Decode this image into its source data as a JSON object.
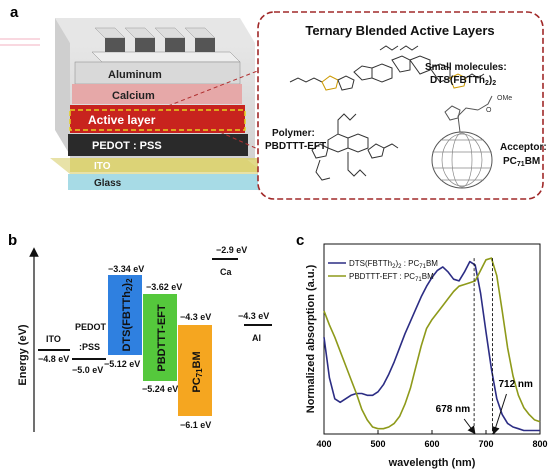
{
  "panel_a": {
    "letter": "a",
    "layers": {
      "aluminum": "Aluminum",
      "calcium": "Calcium",
      "active": "Active layer",
      "pedot": "PEDOT : PSS",
      "ito": "ITO",
      "glass": "Glass"
    },
    "inset": {
      "title": "Ternary Blended Active Layers",
      "small_molecules_label": "Small molecules:",
      "small_molecules_name": "DTS(FBTTh",
      "small_molecules_sub": "2",
      "small_molecules_close": ")",
      "small_molecules_sub2": "2",
      "polymer_label": "Polymer:",
      "polymer_name": "PBDTTT-EFT",
      "acceptor_label": "Acceptor:",
      "acceptor_name_a": "PC",
      "acceptor_sub": "71",
      "acceptor_name_b": "BM",
      "ome": "OMe",
      "o": "O"
    }
  },
  "panel_b": {
    "letter": "b",
    "y_axis_label": "Energy (eV)",
    "colors": {
      "dts": "#2f80e0",
      "pbdttt": "#55c83c",
      "pcbm": "#f5a620"
    },
    "levels": {
      "ca_value": "−2.9 eV",
      "ca_label": "Ca",
      "al_value": "−4.3 eV",
      "al_label": "Al",
      "ito_label": "ITO",
      "ito_value": "−4.8 eV",
      "pedot_label_1": "PEDOT",
      "pedot_label_2": ":PSS",
      "pedot_value": "−5.0 eV",
      "dts_lumo": "−3.34 eV",
      "dts_homo": "−5.12 eV",
      "pbdttt_lumo": "−3.62 eV",
      "pbdttt_homo": "−5.24 eV",
      "pcbm_lumo": "−4.3 eV",
      "pcbm_homo": "−6.1 eV"
    },
    "bars": {
      "dts": "DTS(FBTTh",
      "dts_sub": "2",
      "dts_close": ")",
      "dts_sub2": "2",
      "pbdttt": "PBDTTT-EFT",
      "pcbm_a": "PC",
      "pcbm_sub": "71",
      "pcbm_b": "BM"
    }
  },
  "chart_data": {
    "type": "line",
    "panel_letter": "c",
    "xlabel": "wavelength (nm)",
    "ylabel": "Normalized absorption (a.u.)",
    "xlim": [
      400,
      800
    ],
    "ylim": [
      0,
      1.08
    ],
    "xticks": [
      "400",
      "500",
      "600",
      "700",
      "800"
    ],
    "series": [
      {
        "name": "DTS(FBTTh2)2 : PC71BM",
        "color": "#2c2d84",
        "x": [
          400,
          410,
          420,
          430,
          440,
          450,
          460,
          470,
          480,
          490,
          500,
          510,
          520,
          530,
          540,
          550,
          560,
          570,
          580,
          590,
          600,
          610,
          620,
          630,
          640,
          650,
          660,
          670,
          680,
          690,
          700,
          710,
          720,
          730,
          740,
          750,
          760,
          770,
          780,
          790,
          800
        ],
        "y": [
          0.55,
          0.32,
          0.2,
          0.18,
          0.2,
          0.22,
          0.23,
          0.23,
          0.22,
          0.22,
          0.24,
          0.28,
          0.34,
          0.41,
          0.49,
          0.57,
          0.64,
          0.71,
          0.78,
          0.84,
          0.89,
          0.93,
          0.95,
          0.92,
          0.88,
          0.87,
          0.92,
          0.98,
          0.96,
          0.8,
          0.58,
          0.37,
          0.2,
          0.11,
          0.06,
          0.04,
          0.03,
          0.02,
          0.02,
          0.02,
          0.02
        ]
      },
      {
        "name": "PBDTTT-EFT : PC71BM",
        "color": "#8e9a1a",
        "x": [
          400,
          410,
          420,
          430,
          440,
          450,
          460,
          470,
          480,
          490,
          500,
          510,
          520,
          530,
          540,
          550,
          560,
          570,
          580,
          590,
          600,
          610,
          620,
          630,
          640,
          650,
          660,
          670,
          680,
          690,
          700,
          710,
          720,
          730,
          740,
          750,
          760,
          770,
          780,
          790,
          800
        ],
        "y": [
          0.7,
          0.62,
          0.55,
          0.47,
          0.39,
          0.31,
          0.23,
          0.14,
          0.08,
          0.04,
          0.03,
          0.03,
          0.04,
          0.06,
          0.1,
          0.17,
          0.26,
          0.38,
          0.5,
          0.6,
          0.65,
          0.69,
          0.73,
          0.77,
          0.81,
          0.84,
          0.85,
          0.86,
          0.87,
          0.93,
          0.99,
          1.0,
          0.9,
          0.7,
          0.49,
          0.33,
          0.22,
          0.15,
          0.11,
          0.08,
          0.07
        ]
      }
    ],
    "legend": {
      "placement": "top-left",
      "entries": [
        {
          "a": "DTS(FBTTh",
          "s1": "2",
          "b": ")",
          "s2": "2",
          "c": " : PC",
          "s3": "71",
          "d": "BM"
        },
        {
          "a": "PBDTTT-EFT : PC",
          "s3": "71",
          "d": "BM"
        }
      ]
    },
    "annotations": [
      {
        "x": 678,
        "text": "678 nm"
      },
      {
        "x": 712,
        "text": "712 nm"
      }
    ]
  }
}
